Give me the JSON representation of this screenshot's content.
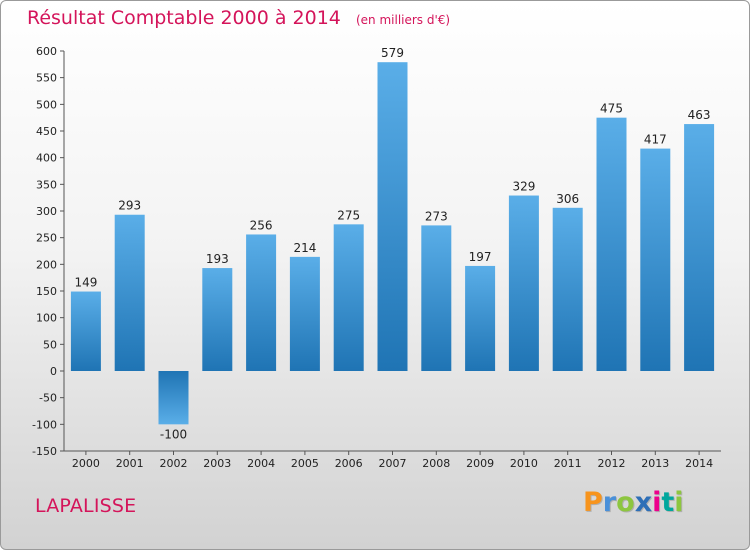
{
  "header": {
    "title": "Résultat Comptable 2000 à 2014",
    "subtitle": "(en milliers d'€)"
  },
  "footer": {
    "commune": "LAPALISSE",
    "logo": "Proxiti"
  },
  "colors": {
    "title": "#d4145a",
    "bar_light": "#5aaee8",
    "bar_dark": "#1f74b4"
  },
  "chart_data": {
    "type": "bar",
    "title": "Résultat Comptable 2000 à 2014",
    "subtitle": "(en milliers d'€)",
    "xlabel": "",
    "ylabel": "",
    "categories": [
      "2000",
      "2001",
      "2002",
      "2003",
      "2004",
      "2005",
      "2006",
      "2007",
      "2008",
      "2009",
      "2010",
      "2011",
      "2012",
      "2013",
      "2014"
    ],
    "values": [
      149,
      293,
      -100,
      193,
      256,
      214,
      275,
      579,
      273,
      197,
      329,
      306,
      475,
      417,
      463
    ],
    "ylim": [
      -150,
      600
    ],
    "yticks": [
      -150,
      -100,
      -50,
      0,
      50,
      100,
      150,
      200,
      250,
      300,
      350,
      400,
      450,
      500,
      550,
      600
    ],
    "grid": false,
    "legend": "none",
    "data_labels": true
  }
}
